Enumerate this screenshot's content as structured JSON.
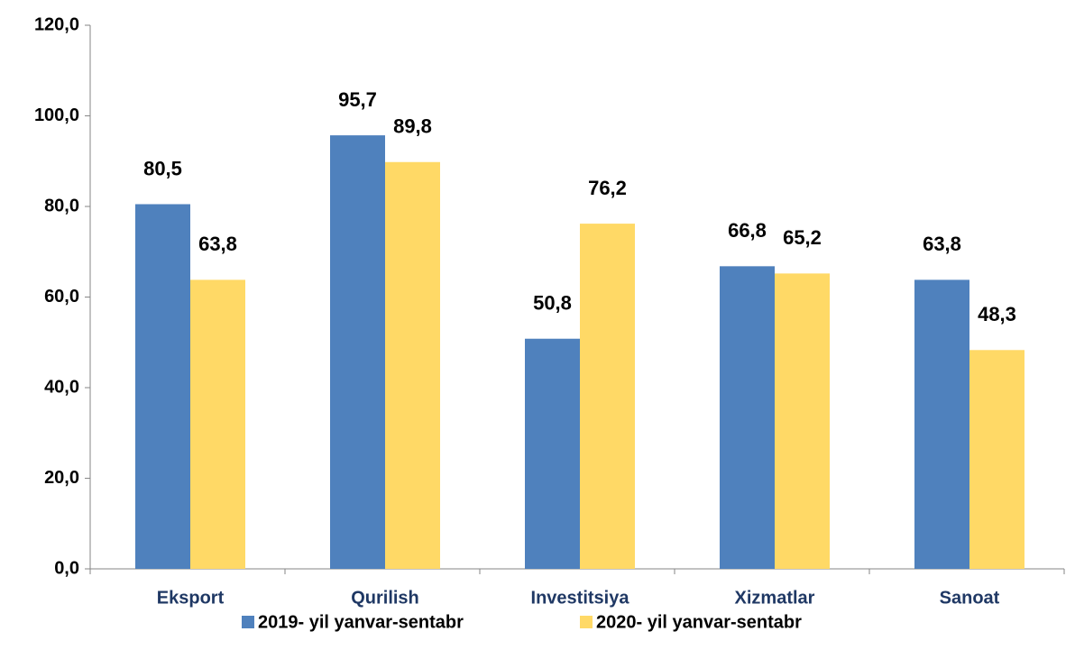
{
  "chart_data": {
    "type": "bar",
    "categories": [
      "Eksport",
      "Qurilish",
      "Investitsiya",
      "Xizmatlar",
      "Sanoat"
    ],
    "series": [
      {
        "name": "2019- yil yanvar-sentabr",
        "color": "#4f81bd",
        "values": [
          80.5,
          95.7,
          50.8,
          66.8,
          63.8
        ],
        "value_labels": [
          "80,5",
          "95,7",
          "50,8",
          "66,8",
          "63,8"
        ]
      },
      {
        "name": "2020- yil yanvar-sentabr",
        "color": "#ffd966",
        "values": [
          63.8,
          89.8,
          76.2,
          65.2,
          48.3
        ],
        "value_labels": [
          "63,8",
          "89,8",
          "76,2",
          "65,2",
          "48,3"
        ]
      }
    ],
    "ylim": [
      0,
      120
    ],
    "yticks": [
      {
        "value": 0,
        "label": "0,0"
      },
      {
        "value": 20,
        "label": "20,0"
      },
      {
        "value": 40,
        "label": "40,0"
      },
      {
        "value": 60,
        "label": "60,0"
      },
      {
        "value": 80,
        "label": "80,0"
      },
      {
        "value": 100,
        "label": "100,0"
      },
      {
        "value": 120,
        "label": "120,0"
      }
    ],
    "legend": "bottom"
  }
}
